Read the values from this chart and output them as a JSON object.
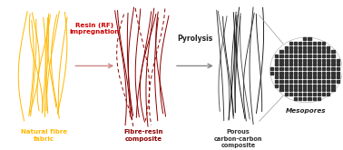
{
  "bg_color": "#ffffff",
  "fibre_color_yellow": "#FFB800",
  "fibre_color_red": "#8B0000",
  "fibre_color_dark": "#1a1a1a",
  "arrow1_color": "#cc8888",
  "arrow2_color": "#888888",
  "label1": "Natural fibre\nfabric",
  "label1_color": "#FFB800",
  "label2": "Fibre-resin\ncomposite",
  "label2_color": "#8B0000",
  "label3": "Porous\ncarbon-carbon\ncomposite",
  "label3_color": "#333333",
  "label4": "Mesopores",
  "label4_color": "#222222",
  "step1_label": "Resin (RF)\nimpregnation",
  "step1_color": "#cc0000",
  "step2_label": "Pyrolysis",
  "step2_color": "#222222",
  "dot_color": "#333333",
  "zoom_line_color": "#999999"
}
